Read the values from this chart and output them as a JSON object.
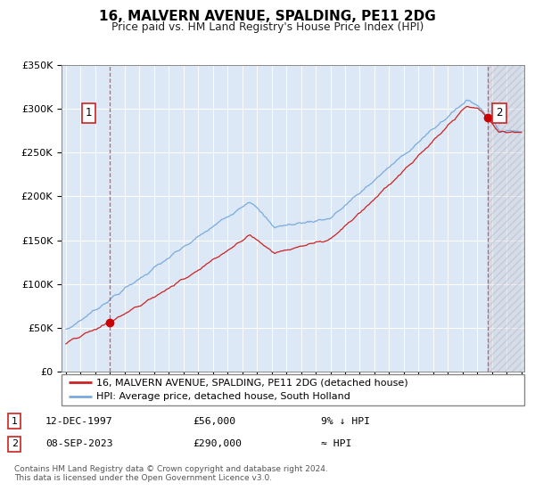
{
  "title": "16, MALVERN AVENUE, SPALDING, PE11 2DG",
  "subtitle": "Price paid vs. HM Land Registry's House Price Index (HPI)",
  "legend_line1": "16, MALVERN AVENUE, SPALDING, PE11 2DG (detached house)",
  "legend_line2": "HPI: Average price, detached house, South Holland",
  "sale1_date": "12-DEC-1997",
  "sale1_price": 56000,
  "sale1_hpi": "9% ↓ HPI",
  "sale2_date": "08-SEP-2023",
  "sale2_price": 290000,
  "sale2_hpi": "≈ HPI",
  "footer": "Contains HM Land Registry data © Crown copyright and database right 2024.\nThis data is licensed under the Open Government Licence v3.0.",
  "hpi_color": "#7aaadd",
  "price_color": "#cc2222",
  "plot_bg": "#dce8f5",
  "marker_color": "#cc0000",
  "dashed_color": "#dd4444",
  "ylim": [
    0,
    350000
  ],
  "yticks": [
    0,
    50000,
    100000,
    150000,
    200000,
    250000,
    300000,
    350000
  ],
  "ytick_labels": [
    "£0",
    "£50K",
    "£100K",
    "£150K",
    "£200K",
    "£250K",
    "£300K",
    "£350K"
  ],
  "x_start_year": 1995,
  "x_end_year": 2026,
  "sale1_x": 1997.95,
  "sale2_x": 2023.69
}
